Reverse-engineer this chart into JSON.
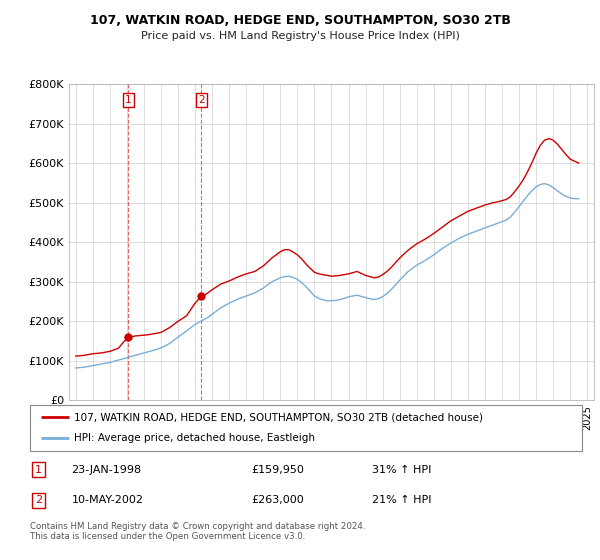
{
  "title": "107, WATKIN ROAD, HEDGE END, SOUTHAMPTON, SO30 2TB",
  "subtitle": "Price paid vs. HM Land Registry's House Price Index (HPI)",
  "legend_line1": "107, WATKIN ROAD, HEDGE END, SOUTHAMPTON, SO30 2TB (detached house)",
  "legend_line2": "HPI: Average price, detached house, Eastleigh",
  "footer": "Contains HM Land Registry data © Crown copyright and database right 2024.\nThis data is licensed under the Open Government Licence v3.0.",
  "sale1_date": "23-JAN-1998",
  "sale1_price": "£159,950",
  "sale1_hpi": "31% ↑ HPI",
  "sale2_date": "10-MAY-2002",
  "sale2_price": "£263,000",
  "sale2_hpi": "21% ↑ HPI",
  "red_color": "#cc0000",
  "blue_color": "#7aaed6",
  "marker_color": "#cc0000",
  "sale1_x": 1998.07,
  "sale1_y": 159950,
  "sale2_x": 2002.36,
  "sale2_y": 263000,
  "ylim": [
    0,
    800000
  ],
  "xlim_start": 1994.6,
  "xlim_end": 2025.4,
  "yticks": [
    0,
    100000,
    200000,
    300000,
    400000,
    500000,
    600000,
    700000,
    800000
  ],
  "xticks": [
    1995,
    1996,
    1997,
    1998,
    1999,
    2000,
    2001,
    2002,
    2003,
    2004,
    2005,
    2006,
    2007,
    2008,
    2009,
    2010,
    2011,
    2012,
    2013,
    2014,
    2015,
    2016,
    2017,
    2018,
    2019,
    2020,
    2021,
    2022,
    2023,
    2024,
    2025
  ],
  "red_x": [
    1995.0,
    1995.25,
    1995.5,
    1995.75,
    1996.0,
    1996.25,
    1996.5,
    1996.75,
    1997.0,
    1997.25,
    1997.5,
    1997.75,
    1998.07,
    1998.25,
    1998.5,
    1998.75,
    1999.0,
    1999.25,
    1999.5,
    1999.75,
    2000.0,
    2000.25,
    2000.5,
    2000.75,
    2001.0,
    2001.25,
    2001.5,
    2001.75,
    2002.0,
    2002.36,
    2002.5,
    2002.75,
    2003.0,
    2003.25,
    2003.5,
    2003.75,
    2004.0,
    2004.25,
    2004.5,
    2004.75,
    2005.0,
    2005.25,
    2005.5,
    2005.75,
    2006.0,
    2006.25,
    2006.5,
    2006.75,
    2007.0,
    2007.25,
    2007.5,
    2007.75,
    2008.0,
    2008.25,
    2008.5,
    2008.75,
    2009.0,
    2009.25,
    2009.5,
    2009.75,
    2010.0,
    2010.25,
    2010.5,
    2010.75,
    2011.0,
    2011.25,
    2011.5,
    2011.75,
    2012.0,
    2012.25,
    2012.5,
    2012.75,
    2013.0,
    2013.25,
    2013.5,
    2013.75,
    2014.0,
    2014.25,
    2014.5,
    2014.75,
    2015.0,
    2015.25,
    2015.5,
    2015.75,
    2016.0,
    2016.25,
    2016.5,
    2016.75,
    2017.0,
    2017.25,
    2017.5,
    2017.75,
    2018.0,
    2018.25,
    2018.5,
    2018.75,
    2019.0,
    2019.25,
    2019.5,
    2019.75,
    2020.0,
    2020.25,
    2020.5,
    2020.75,
    2021.0,
    2021.25,
    2021.5,
    2021.75,
    2022.0,
    2022.25,
    2022.5,
    2022.75,
    2023.0,
    2023.25,
    2023.5,
    2023.75,
    2024.0,
    2024.25,
    2024.5
  ],
  "red_y": [
    112000,
    113000,
    114000,
    116000,
    118000,
    119000,
    120000,
    122000,
    124000,
    128000,
    132000,
    145000,
    159950,
    161000,
    163000,
    164000,
    165000,
    166000,
    168000,
    170000,
    172000,
    178000,
    184000,
    192000,
    200000,
    207000,
    214000,
    230000,
    246000,
    263000,
    265000,
    272000,
    280000,
    287000,
    294000,
    298000,
    302000,
    307000,
    312000,
    316000,
    320000,
    323000,
    326000,
    333000,
    340000,
    350000,
    360000,
    368000,
    376000,
    381000,
    381000,
    375000,
    368000,
    358000,
    345000,
    334000,
    324000,
    320000,
    318000,
    316000,
    314000,
    315000,
    316000,
    318000,
    320000,
    323000,
    326000,
    321000,
    316000,
    313000,
    310000,
    312000,
    318000,
    326000,
    336000,
    348000,
    360000,
    370000,
    380000,
    388000,
    396000,
    402000,
    408000,
    415000,
    422000,
    430000,
    438000,
    446000,
    454000,
    460000,
    466000,
    472000,
    478000,
    482000,
    486000,
    490000,
    494000,
    497000,
    500000,
    502000,
    505000,
    508000,
    515000,
    528000,
    542000,
    558000,
    578000,
    600000,
    625000,
    645000,
    658000,
    662000,
    658000,
    648000,
    635000,
    622000,
    610000,
    605000,
    600000
  ],
  "blue_x": [
    1995.0,
    1995.25,
    1995.5,
    1995.75,
    1996.0,
    1996.25,
    1996.5,
    1996.75,
    1997.0,
    1997.25,
    1997.5,
    1997.75,
    1998.0,
    1998.25,
    1998.5,
    1998.75,
    1999.0,
    1999.25,
    1999.5,
    1999.75,
    2000.0,
    2000.25,
    2000.5,
    2000.75,
    2001.0,
    2001.25,
    2001.5,
    2001.75,
    2002.0,
    2002.25,
    2002.5,
    2002.75,
    2003.0,
    2003.25,
    2003.5,
    2003.75,
    2004.0,
    2004.25,
    2004.5,
    2004.75,
    2005.0,
    2005.25,
    2005.5,
    2005.75,
    2006.0,
    2006.25,
    2006.5,
    2006.75,
    2007.0,
    2007.25,
    2007.5,
    2007.75,
    2008.0,
    2008.25,
    2008.5,
    2008.75,
    2009.0,
    2009.25,
    2009.5,
    2009.75,
    2010.0,
    2010.25,
    2010.5,
    2010.75,
    2011.0,
    2011.25,
    2011.5,
    2011.75,
    2012.0,
    2012.25,
    2012.5,
    2012.75,
    2013.0,
    2013.25,
    2013.5,
    2013.75,
    2014.0,
    2014.25,
    2014.5,
    2014.75,
    2015.0,
    2015.25,
    2015.5,
    2015.75,
    2016.0,
    2016.25,
    2016.5,
    2016.75,
    2017.0,
    2017.25,
    2017.5,
    2017.75,
    2018.0,
    2018.25,
    2018.5,
    2018.75,
    2019.0,
    2019.25,
    2019.5,
    2019.75,
    2020.0,
    2020.25,
    2020.5,
    2020.75,
    2021.0,
    2021.25,
    2021.5,
    2021.75,
    2022.0,
    2022.25,
    2022.5,
    2022.75,
    2023.0,
    2023.25,
    2023.5,
    2023.75,
    2024.0,
    2024.25,
    2024.5
  ],
  "blue_y": [
    82000,
    83000,
    84000,
    86000,
    88000,
    90000,
    92000,
    94000,
    96000,
    99000,
    102000,
    105000,
    108000,
    111000,
    114000,
    117000,
    120000,
    123000,
    126000,
    129000,
    133000,
    138000,
    144000,
    152000,
    160000,
    168000,
    176000,
    184000,
    192000,
    198000,
    204000,
    210000,
    218000,
    226000,
    234000,
    240000,
    246000,
    251000,
    256000,
    260000,
    264000,
    268000,
    272000,
    278000,
    284000,
    292000,
    300000,
    305000,
    310000,
    313000,
    314000,
    311000,
    306000,
    298000,
    288000,
    276000,
    264000,
    258000,
    254000,
    252000,
    252000,
    253000,
    255000,
    258000,
    262000,
    264000,
    266000,
    263000,
    260000,
    257000,
    255000,
    257000,
    262000,
    270000,
    280000,
    292000,
    304000,
    315000,
    326000,
    334000,
    342000,
    348000,
    354000,
    361000,
    368000,
    376000,
    384000,
    391000,
    398000,
    404000,
    410000,
    415000,
    420000,
    424000,
    428000,
    432000,
    436000,
    440000,
    444000,
    448000,
    452000,
    456000,
    464000,
    476000,
    490000,
    504000,
    518000,
    530000,
    540000,
    546000,
    548000,
    545000,
    538000,
    530000,
    522000,
    516000,
    512000,
    510000,
    510000
  ]
}
